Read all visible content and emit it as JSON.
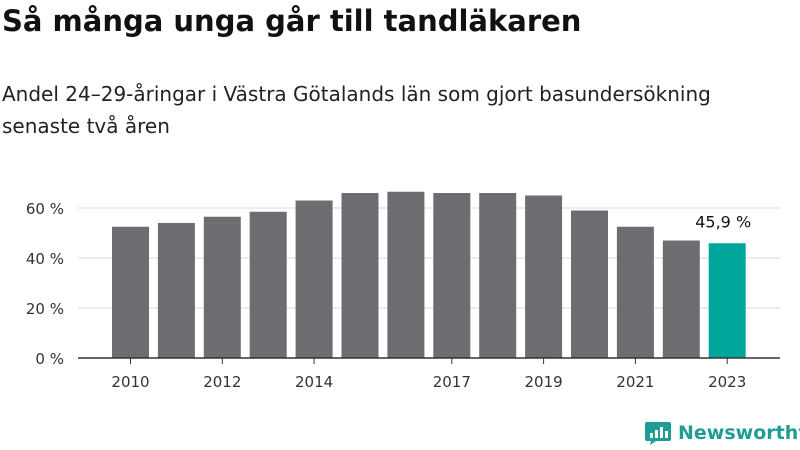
{
  "header": {
    "title": "Så många unga går till tandläkaren",
    "subtitle": "Andel 24–29-åringar i Västra Götalands län som gjort basundersökning senaste två åren"
  },
  "chart_data": {
    "type": "bar",
    "x": [
      2010,
      2011,
      2012,
      2013,
      2014,
      2015,
      2016,
      2017,
      2018,
      2019,
      2020,
      2021,
      2022,
      2023
    ],
    "values": [
      52.5,
      54,
      56.5,
      58.5,
      63,
      66,
      66.5,
      66,
      66,
      65,
      59,
      52.5,
      47,
      45.9
    ],
    "x_tick_labels": [
      "2010",
      "2012",
      "2014",
      "2017",
      "2019",
      "2021",
      "2023"
    ],
    "y_ticks": [
      0,
      20,
      40,
      60
    ],
    "y_tick_labels": [
      "0 %",
      "20 %",
      "40 %",
      "60 %"
    ],
    "ylim": [
      0,
      70
    ],
    "grid": true,
    "highlight": {
      "x": 2023,
      "label": "45,9 %"
    },
    "colors": {
      "bar": "#6d6c70",
      "highlight": "#00a59c",
      "grid": "#d9d9d9",
      "axis": "#333333"
    }
  },
  "footer": {
    "logo_text": "Newsworthy",
    "logo_icon": "newsworthy-logo-icon",
    "logo_color": "#1f9d94"
  }
}
